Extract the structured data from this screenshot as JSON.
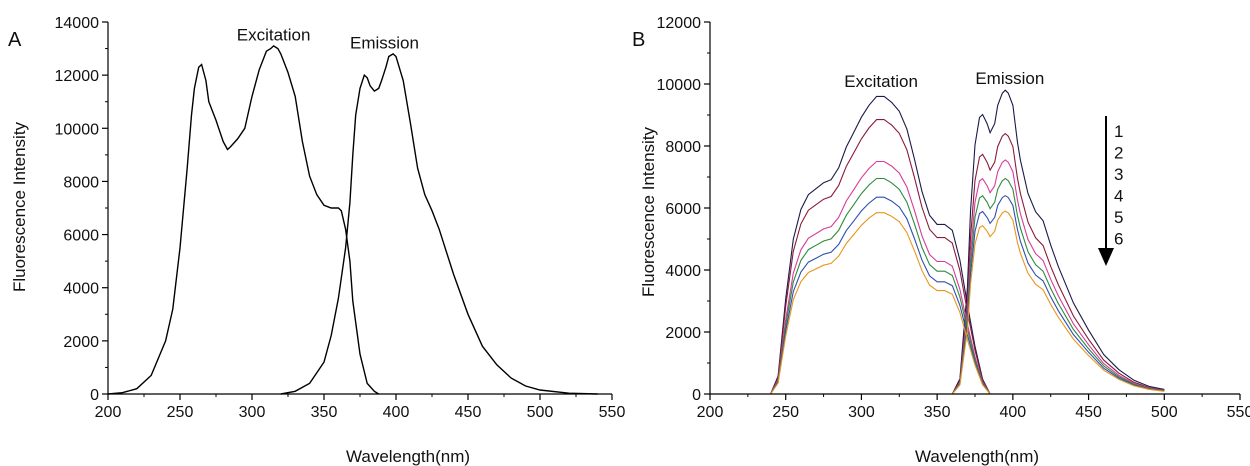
{
  "chart_data": [
    {
      "panel": "A",
      "type": "line",
      "xlabel": "Wavelength(nm)",
      "ylabel": "Fluorescence Intensity",
      "xlim": [
        200,
        550
      ],
      "ylim": [
        0,
        14000
      ],
      "xticks": [
        200,
        250,
        300,
        350,
        400,
        450,
        500,
        550
      ],
      "yticks": [
        0,
        2000,
        4000,
        6000,
        8000,
        10000,
        12000,
        14000
      ],
      "grid": false,
      "legend": "none",
      "annotations": [
        {
          "text": "Excitation",
          "at": [
            315,
            13300
          ]
        },
        {
          "text": "Emission",
          "at": [
            392,
            13000
          ]
        }
      ],
      "series": [
        {
          "color": "#000000",
          "x": [
            200,
            210,
            220,
            230,
            240,
            245,
            250,
            255,
            258,
            260,
            263,
            265,
            268,
            270,
            275,
            280,
            283,
            285,
            290,
            295,
            300,
            305,
            310,
            313,
            315,
            318,
            320,
            325,
            330,
            335,
            340,
            345,
            350,
            355,
            360,
            362,
            365,
            368,
            370,
            375,
            380,
            385,
            388
          ],
          "values": [
            0,
            50,
            200,
            700,
            2000,
            3200,
            5500,
            8500,
            10500,
            11500,
            12300,
            12400,
            11800,
            11000,
            10300,
            9500,
            9200,
            9300,
            9600,
            10000,
            11200,
            12200,
            12900,
            13000,
            13100,
            13000,
            12800,
            12100,
            11200,
            9500,
            8200,
            7500,
            7100,
            7000,
            7000,
            6900,
            6200,
            5000,
            3500,
            1500,
            400,
            100,
            0
          ]
        },
        {
          "color": "#000000",
          "x": [
            320,
            330,
            340,
            350,
            355,
            360,
            365,
            368,
            370,
            372,
            375,
            378,
            380,
            382,
            385,
            388,
            390,
            393,
            395,
            398,
            400,
            405,
            410,
            415,
            420,
            425,
            430,
            440,
            450,
            460,
            470,
            480,
            490,
            500,
            520,
            540
          ],
          "values": [
            0,
            100,
            400,
            1200,
            2200,
            3600,
            5500,
            7200,
            9000,
            10500,
            11500,
            12000,
            11900,
            11600,
            11400,
            11500,
            11800,
            12300,
            12700,
            12800,
            12700,
            11800,
            10200,
            8500,
            7500,
            6900,
            6200,
            4500,
            3000,
            1800,
            1100,
            600,
            300,
            150,
            30,
            0
          ]
        }
      ]
    },
    {
      "panel": "B",
      "type": "line",
      "xlabel": "Wavelength(nm)",
      "ylabel": "Fluorescence  Intensity",
      "xlim": [
        200,
        550
      ],
      "ylim": [
        0,
        12000
      ],
      "xticks": [
        200,
        250,
        300,
        350,
        400,
        450,
        500,
        550
      ],
      "yticks": [
        0,
        2000,
        4000,
        6000,
        8000,
        10000,
        12000
      ],
      "grid": false,
      "legend": "right",
      "annotations": [
        {
          "text": "Excitation",
          "at": [
            313,
            9900
          ]
        },
        {
          "text": "Emission",
          "at": [
            398,
            10000
          ]
        }
      ],
      "arrow_labels": [
        "1",
        "2",
        "3",
        "4",
        "5",
        "6"
      ],
      "excitation_x": [
        240,
        245,
        250,
        255,
        260,
        265,
        270,
        275,
        280,
        285,
        290,
        295,
        300,
        305,
        310,
        315,
        320,
        325,
        330,
        335,
        340,
        345,
        350,
        355,
        360,
        365,
        370,
        375,
        380,
        385
      ],
      "excitation_shape": [
        0,
        0.06,
        0.32,
        0.52,
        0.62,
        0.67,
        0.69,
        0.71,
        0.72,
        0.76,
        0.83,
        0.88,
        0.93,
        0.97,
        1.0,
        1.0,
        0.98,
        0.95,
        0.89,
        0.79,
        0.68,
        0.6,
        0.57,
        0.57,
        0.55,
        0.45,
        0.3,
        0.16,
        0.05,
        0
      ],
      "emission_x": [
        360,
        365,
        370,
        372,
        375,
        378,
        380,
        383,
        385,
        388,
        390,
        393,
        395,
        397,
        400,
        403,
        405,
        410,
        415,
        420,
        425,
        430,
        440,
        450,
        460,
        470,
        480,
        490,
        500
      ],
      "emission_shape": [
        0,
        0.05,
        0.35,
        0.6,
        0.82,
        0.91,
        0.92,
        0.89,
        0.86,
        0.89,
        0.95,
        0.99,
        1.0,
        0.99,
        0.95,
        0.83,
        0.77,
        0.66,
        0.6,
        0.57,
        0.49,
        0.42,
        0.3,
        0.21,
        0.13,
        0.08,
        0.045,
        0.025,
        0.015
      ],
      "series": [
        {
          "name": "1",
          "color": "#1a1a4a",
          "excitation_peak": 9600,
          "emission_peak": 9800
        },
        {
          "name": "2",
          "color": "#8b1a3a",
          "excitation_peak": 8850,
          "emission_peak": 8400
        },
        {
          "name": "3",
          "color": "#d63c9a",
          "excitation_peak": 7500,
          "emission_peak": 7550
        },
        {
          "name": "4",
          "color": "#2e8b3c",
          "excitation_peak": 6950,
          "emission_peak": 6950
        },
        {
          "name": "5",
          "color": "#2f4fb0",
          "excitation_peak": 6350,
          "emission_peak": 6400
        },
        {
          "name": "6",
          "color": "#e8961e",
          "excitation_peak": 5850,
          "emission_peak": 5900
        }
      ]
    }
  ]
}
